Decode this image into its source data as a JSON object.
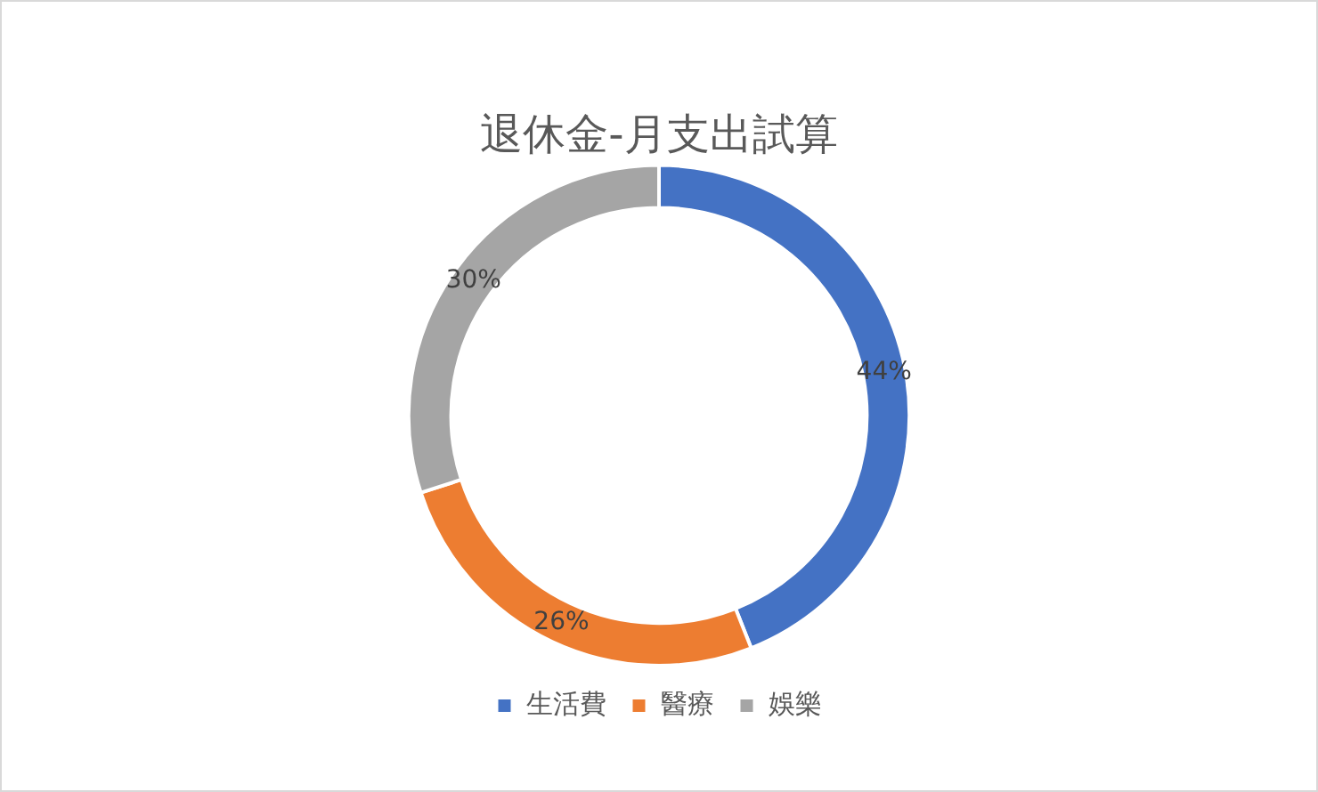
{
  "chart_data": {
    "type": "donut",
    "title": "退休金-月支出試算",
    "categories": [
      "生活費",
      "醫療",
      "娛樂"
    ],
    "values": [
      44,
      26,
      30
    ],
    "colors": [
      "#4472c4",
      "#ed7d31",
      "#a5a5a5"
    ],
    "value_labels": [
      "44%",
      "26%",
      "30%"
    ],
    "legend": "bottom"
  }
}
